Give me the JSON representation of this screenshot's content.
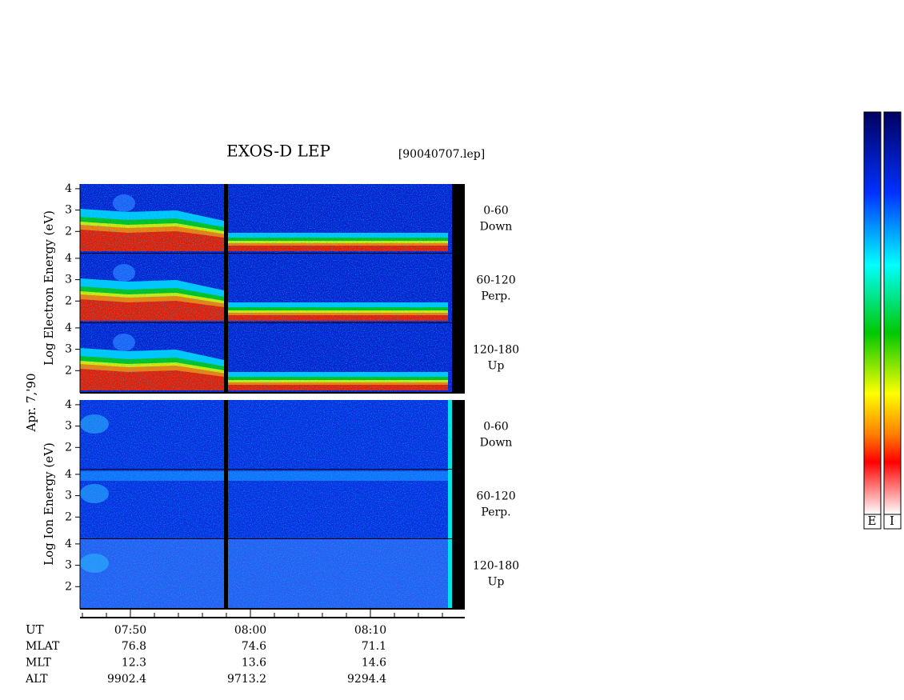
{
  "title": "EXOS-D LEP",
  "file": "[90040707.lep]",
  "date_label": "Apr. 7,'90",
  "electron_axis_label": "Log  Electron  Energy (eV)",
  "ion_axis_label": "Log  Ion  Energy (eV)",
  "energy_ticks": [
    2,
    3,
    4
  ],
  "panels": [
    {
      "label": "0-60",
      "sublabel": "Down"
    },
    {
      "label": "60-120",
      "sublabel": "Perp."
    },
    {
      "label": "120-180",
      "sublabel": "Up"
    },
    {
      "label": "0-60",
      "sublabel": "Down"
    },
    {
      "label": "60-120",
      "sublabel": "Perp."
    },
    {
      "label": "120-180",
      "sublabel": "Up"
    }
  ],
  "time_ticks": [
    "07:50",
    "08:00",
    "08:10"
  ],
  "rows": [
    {
      "name": "MLAT",
      "values": [
        76.8,
        74.6,
        71.1
      ]
    },
    {
      "name": "MLT",
      "values": [
        12.3,
        13.6,
        14.6
      ]
    },
    {
      "name": "ALT",
      "values": [
        9902.4,
        9713.2,
        9294.4
      ]
    }
  ],
  "ut_label": "UT",
  "colorbar_labels": [
    "E",
    "I"
  ]
}
